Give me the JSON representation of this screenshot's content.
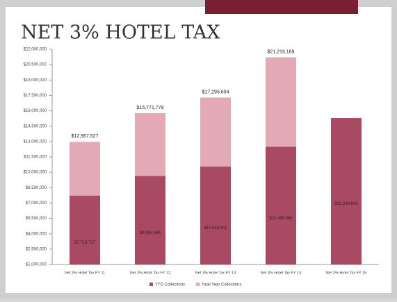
{
  "chart_data": {
    "type": "bar",
    "barmode": "overlay",
    "title": "NET 3% HOTEL TAX",
    "categories": [
      "Net 3% Hotel Tax FY 11",
      "Net 3% Hotel Tax FY 12",
      "Net 3% Hotel Tax FY 13",
      "Net 3% Hotel Tax FY 14",
      "Net 3% Hotel Tax FY 15"
    ],
    "series": [
      {
        "name": "Total Year Collections",
        "color": "#e3aab6",
        "values": [
          12967527,
          15771778,
          17295604,
          21216189,
          null
        ],
        "value_labels": [
          "$12,967,527",
          "$15,771,778",
          "$17,295,604",
          "$21,216,189",
          null
        ]
      },
      {
        "name": "YTD Collections",
        "color": "#a84a62",
        "values": [
          7719727,
          9634946,
          10553801,
          12486386,
          15290645
        ],
        "value_labels": [
          "$7,719,727",
          "$9,634,946",
          "$10,553,801",
          "$12,486,386",
          "$15,290,645"
        ]
      }
    ],
    "ylim": [
      1000000,
      22000000
    ],
    "yticks": [
      {
        "value": 1000000,
        "label": "$1,000,000"
      },
      {
        "value": 2500000,
        "label": "$2,500,000"
      },
      {
        "value": 4000000,
        "label": "$4,000,000"
      },
      {
        "value": 5500000,
        "label": "$5,500,000"
      },
      {
        "value": 7000000,
        "label": "$7,000,000"
      },
      {
        "value": 8500000,
        "label": "$8,500,000"
      },
      {
        "value": 10000000,
        "label": "$10,000,000"
      },
      {
        "value": 11500000,
        "label": "$11,500,000"
      },
      {
        "value": 13000000,
        "label": "$13,000,000"
      },
      {
        "value": 14500000,
        "label": "$14,500,000"
      },
      {
        "value": 16000000,
        "label": "$16,000,000"
      },
      {
        "value": 17500000,
        "label": "$17,500,000"
      },
      {
        "value": 19000000,
        "label": "$19,000,000"
      },
      {
        "value": 20500000,
        "label": "$20,500,000"
      },
      {
        "value": 22000000,
        "label": "$22,000,000"
      }
    ],
    "grid": false,
    "legend": "bottom"
  }
}
